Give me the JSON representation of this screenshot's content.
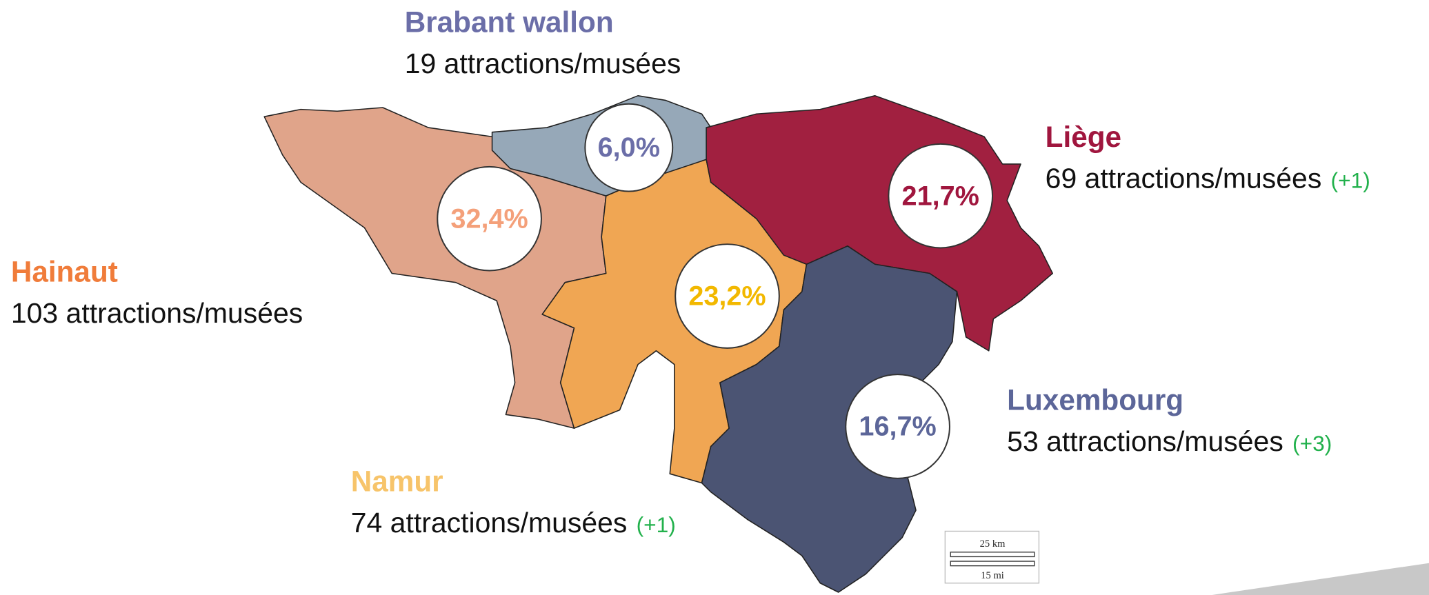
{
  "title": null,
  "regions": [
    {
      "name": "Hainaut",
      "count": "103 attractions/musées",
      "share": "32,4%"
    },
    {
      "name": "Brabant wallon",
      "count": "19 attractions/musées",
      "share": "6,0%"
    },
    {
      "name": "Namur",
      "count": "74 attractions/musées",
      "change": "(+1)",
      "share": "23,2%"
    },
    {
      "name": "Liège",
      "count": "69 attractions/musées",
      "change": "(+1)",
      "share": "21,7%"
    },
    {
      "name": "Luxembourg",
      "count": "53 attractions/musées",
      "change": "(+3)",
      "share": "16,7%"
    }
  ],
  "scale_bar": {
    "km": "25 km",
    "mi": "15 mi"
  }
}
